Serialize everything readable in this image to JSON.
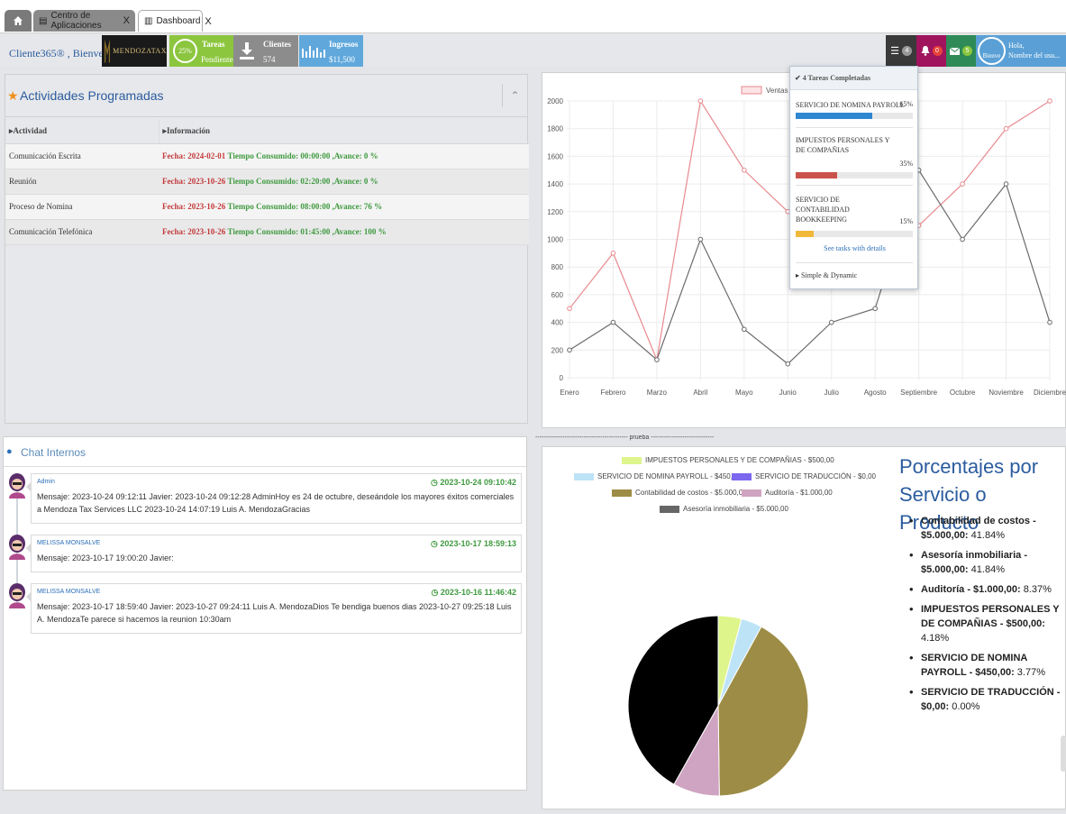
{
  "tabs": [
    {
      "label": "",
      "icon": "home-icon"
    },
    {
      "label": "Centro de Aplicaciones",
      "icon": "apps-icon",
      "close": "X"
    },
    {
      "label": "Dashboard",
      "icon": "chart-icon",
      "close": "X"
    }
  ],
  "header": {
    "welcome": "Cliente365® , Bienvenido",
    "logo_text": "MENDOZATAX",
    "tareas": {
      "title": "Tareas",
      "sub": "Pendientes",
      "percent": "25%"
    },
    "clientes": {
      "title": "Clientes",
      "sub": "574"
    },
    "ingresos": {
      "title": "Ingresos",
      "sub": "$11,500"
    },
    "badges": {
      "tasks": "4",
      "alerts": "0",
      "mail": "5"
    },
    "user": {
      "avatar_label": "Bienve",
      "greeting": "Hola,",
      "name": "Nombre del usu..."
    }
  },
  "tasks_dropdown": {
    "header": "4 Tareas Completadas",
    "items": [
      {
        "label": "SERVICIO DE NOMINA PAYROLL",
        "percent": "65%",
        "value": 0.65,
        "color": "#2f86d1"
      },
      {
        "label": "IMPUESTOS PERSONALES Y DE COMPAÑIAS",
        "percent": "35%",
        "value": 0.35,
        "color": "#c9524a"
      },
      {
        "label": "SERVICIO DE CONTABILIDAD BOOKKEEPING",
        "percent": "15%",
        "value": 0.15,
        "color": "#f0b93a"
      }
    ],
    "see_all": "See tasks with details",
    "footer": "Simple & Dynamic"
  },
  "activities": {
    "title": "Actividades Programadas",
    "columns": [
      "Actividad",
      "Información"
    ],
    "rows": [
      {
        "actividad": "Comunicación Escrita",
        "fecha": "Fecha: 2024-02-01",
        "info": "Tiempo Consumido: 00:00:00 ,Avance: 0 %"
      },
      {
        "actividad": "Reunión",
        "fecha": "Fecha: 2023-10-26",
        "info": "Tiempo Consumido: 02:20:00 ,Avance: 0 %"
      },
      {
        "actividad": "Proceso de Nomina",
        "fecha": "Fecha: 2023-10-26",
        "info": "Tiempo Consumido: 08:00:00 ,Avance: 76 %"
      },
      {
        "actividad": "Comunicación Telefónica",
        "fecha": "Fecha: 2023-10-26",
        "info": "Tiempo Consumido: 01:45:00 ,Avance: 100 %"
      }
    ]
  },
  "chat": {
    "title": "Chat Internos",
    "messages": [
      {
        "name": "Admin",
        "time": "2023-10-24 09:10:42",
        "text": "Mensaje: 2023-10-24 09:12:11 Javier: 2023-10-24 09:12:28 AdminHoy es 24 de octubre, deseándole los mayores éxitos comerciales a Mendoza Tax Services LLC 2023-10-24 14:07:19 Luis A. MendozaGracias"
      },
      {
        "name": "MELISSA MONSALVE",
        "time": "2023-10-17 18:59:13",
        "text": "Mensaje: 2023-10-17 19:00:20 Javier:"
      },
      {
        "name": "MELISSA MONSALVE",
        "time": "2023-10-16 11:46:42",
        "text": "Mensaje: 2023-10-17 18:59:40 Javier: 2023-10-27 09:24:11 Luis A. MendozaDios Te bendiga buenos dias 2023-10-27 09:25:18 Luis A. MendozaTe parece si hacemos la reunion 10:30am"
      }
    ]
  },
  "separator": "-------------------------------------------- prueba ------------------------------ -->",
  "chart_data": [
    {
      "type": "line",
      "categories": [
        "Enero",
        "Febrero",
        "Marzo",
        "Abril",
        "Mayo",
        "Junio",
        "Julio",
        "Agosto",
        "Septiembre",
        "Octubre",
        "Noviembre",
        "Diciembre"
      ],
      "series": [
        {
          "name": "Ventas",
          "color": "#e88a8f",
          "values": [
            500,
            900,
            130,
            2000,
            1500,
            1200,
            1150,
            1100,
            1100,
            1400,
            1800,
            2000
          ]
        },
        {
          "name": "",
          "color": "#6b6b6b",
          "values": [
            200,
            400,
            130,
            1000,
            350,
            100,
            400,
            500,
            1500,
            1000,
            1400,
            400
          ]
        }
      ],
      "ylim": [
        0,
        2000
      ],
      "yticks": [
        0,
        200,
        400,
        600,
        800,
        1000,
        1200,
        1400,
        1600,
        1800,
        2000
      ],
      "grid": true,
      "legend": "top-center"
    },
    {
      "type": "pie",
      "title": "Porcentajes por Servicio o Producto",
      "slices": [
        {
          "label": "IMPUESTOS PERSONALES Y DE COMPAÑIAS - $500,00",
          "value": 500,
          "color": "#def58c"
        },
        {
          "label": "SERVICIO DE NOMINA PAYROLL - $450,00",
          "value": 450,
          "color": "#bde3f7"
        },
        {
          "label": "SERVICIO DE TRADUCCIÓN - $0,00",
          "value": 0,
          "color": "#7b68ee"
        },
        {
          "label": "Contabilidad de costos - $5.000,00",
          "value": 5000,
          "color": "#9d8c45"
        },
        {
          "label": "Auditoría - $1.000,00",
          "value": 1000,
          "color": "#cfa3c2"
        },
        {
          "label": "Asesoría inmobiliaria - $5.000,00",
          "value": 5000,
          "color": "#000000"
        }
      ],
      "legend": "top"
    }
  ],
  "percent_list": [
    {
      "name": "Contabilidad de costos - $5.000,00:",
      "pct": "41.84%"
    },
    {
      "name": "Asesoría inmobiliaria - $5.000,00:",
      "pct": "41.84%"
    },
    {
      "name": "Auditoría - $1.000,00:",
      "pct": "8.37%"
    },
    {
      "name": "IMPUESTOS PERSONALES Y DE COMPAÑIAS - $500,00:",
      "pct": "4.18%"
    },
    {
      "name": "SERVICIO DE NOMINA PAYROLL - $450,00:",
      "pct": "3.77%"
    },
    {
      "name": "SERVICIO DE TRADUCCIÓN - $0,00:",
      "pct": "0.00%"
    }
  ]
}
